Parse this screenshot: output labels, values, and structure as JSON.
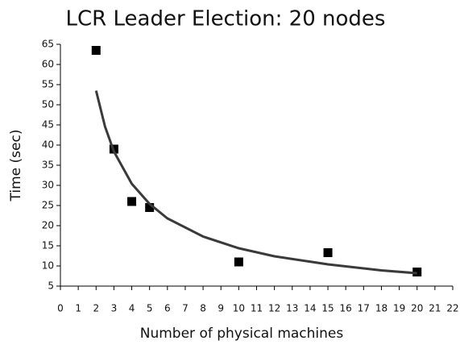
{
  "chart_data": {
    "type": "scatter",
    "title": "LCR Leader Election: 20 nodes",
    "x_label": "Number of physical machines",
    "y_label": "Time (sec)",
    "xlim": [
      0,
      22
    ],
    "xticks": [
      0,
      1,
      2,
      3,
      4,
      5,
      6,
      7,
      8,
      9,
      10,
      11,
      12,
      13,
      14,
      15,
      16,
      17,
      18,
      19,
      20,
      21,
      22
    ],
    "ylim": [
      5,
      65
    ],
    "yticks": [
      5,
      10,
      15,
      20,
      25,
      30,
      35,
      40,
      45,
      50,
      55,
      60,
      65
    ],
    "series": [
      {
        "mode": "markers",
        "color": "#000000",
        "x": [
          2,
          3,
          4,
          5,
          10,
          15,
          20
        ],
        "values": [
          63.5,
          39,
          26,
          24.5,
          11,
          13.3,
          8.5
        ]
      },
      {
        "mode": "line",
        "color": "#3a3a3a",
        "x": [
          2,
          2.5,
          3,
          4,
          5,
          6,
          8,
          10,
          12,
          15,
          18,
          20
        ],
        "values": [
          53.5,
          44.6,
          38.4,
          30.4,
          25.4,
          21.8,
          17.3,
          14.4,
          12.4,
          10.4,
          8.9,
          8.2
        ]
      }
    ]
  }
}
